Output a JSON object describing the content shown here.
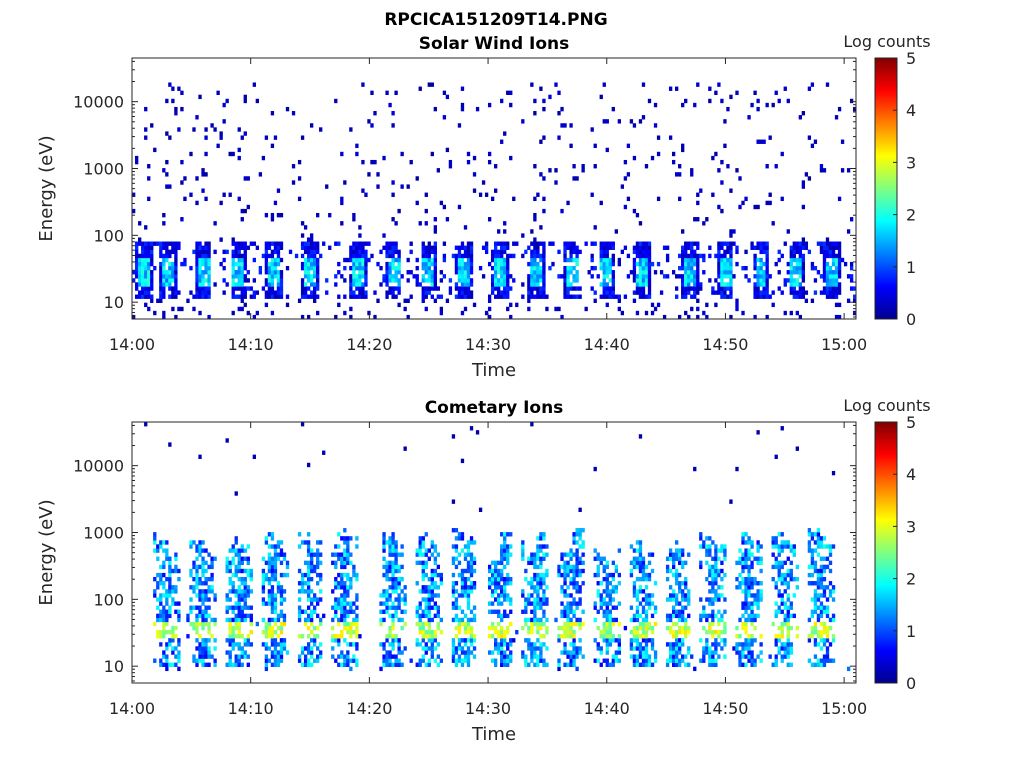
{
  "figure_title": "RPCICA151209T14.PNG",
  "colorbar_ticks": [
    "0",
    "1",
    "2",
    "3",
    "4",
    "5"
  ],
  "colormap": [
    "#00008f",
    "#0000ff",
    "#0080ff",
    "#00ffff",
    "#80ff80",
    "#ffff00",
    "#ff8000",
    "#ff0000",
    "#800000"
  ],
  "chart_data": [
    {
      "type": "heatmap",
      "title": "Solar Wind Ions",
      "xlabel": "Time",
      "ylabel": "Energy (eV)",
      "yscale": "log",
      "xlim": [
        "14:00",
        "15:01"
      ],
      "ylim": [
        5.6,
        45000
      ],
      "x_ticks": [
        "14:00",
        "14:10",
        "14:20",
        "14:30",
        "14:40",
        "14:50",
        "15:00"
      ],
      "y_ticks": [
        "10",
        "100",
        "1000",
        "10000"
      ],
      "colorbar_label": "Log counts",
      "clim": [
        0,
        5
      ],
      "description_values": {
        "sparse_background_level": 0.1,
        "low_energy_band_range_eV": [
          18,
          45
        ],
        "low_energy_band_peak_log_counts": 2.0,
        "burst_times": [
          "14:01",
          "14:03",
          "14:06",
          "14:09",
          "14:12",
          "14:15",
          "14:19",
          "14:22",
          "14:25",
          "14:28",
          "14:31",
          "14:34",
          "14:37",
          "14:40",
          "14:43",
          "14:47",
          "14:50",
          "14:53",
          "14:56",
          "14:59"
        ]
      }
    },
    {
      "type": "heatmap",
      "title": "Cometary Ions",
      "xlabel": "Time",
      "ylabel": "Energy (eV)",
      "yscale": "log",
      "xlim": [
        "14:00",
        "15:01"
      ],
      "ylim": [
        5.6,
        45000
      ],
      "x_ticks": [
        "14:00",
        "14:10",
        "14:20",
        "14:30",
        "14:40",
        "14:50",
        "15:00"
      ],
      "y_ticks": [
        "10",
        "100",
        "1000",
        "10000"
      ],
      "colorbar_label": "Log counts",
      "clim": [
        0,
        5
      ],
      "description_values": {
        "burst_peak_log_counts": 3.0,
        "burst_energy_range_eV": [
          10,
          800
        ],
        "burst_times": [
          "14:03",
          "14:06",
          "14:09",
          "14:12",
          "14:15",
          "14:18",
          "14:22",
          "14:25",
          "14:28",
          "14:31",
          "14:34",
          "14:37",
          "14:40",
          "14:43",
          "14:46",
          "14:49",
          "14:52",
          "14:55",
          "14:58"
        ]
      }
    }
  ]
}
